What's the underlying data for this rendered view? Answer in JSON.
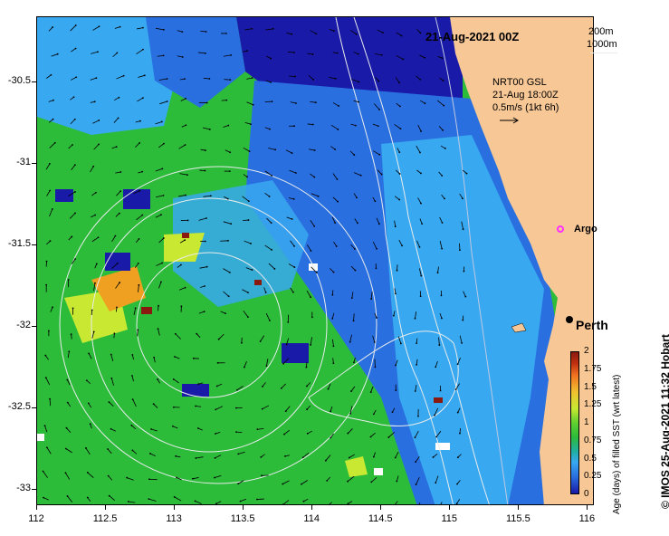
{
  "title": "21-Aug-2021 00Z",
  "depth_legend": [
    "200m",
    "1000m"
  ],
  "current_info": {
    "line1": "NRT00 GSL",
    "line2": "21-Aug 18:00Z",
    "line3": "0.5m/s (1kt 6h)"
  },
  "places": {
    "argo": "Argo",
    "perth": "Perth"
  },
  "axes": {
    "x_ticks": [
      "112",
      "112.5",
      "113",
      "113.5",
      "114",
      "114.5",
      "115",
      "115.5",
      "116"
    ],
    "x_values": [
      112,
      112.5,
      113,
      113.5,
      114,
      114.5,
      115,
      115.5,
      116
    ],
    "y_ticks": [
      "-30.5",
      "-31",
      "-31.5",
      "-32",
      "-32.5",
      "-33"
    ],
    "y_values": [
      -30.5,
      -31,
      -31.5,
      -32,
      -32.5,
      -33
    ],
    "lon_range": [
      112,
      116.05
    ],
    "lat_range": [
      -30.1,
      -33.1
    ]
  },
  "colorbar": {
    "title": "Age (days) of filled SST (wrt latest)",
    "ticks": [
      "2",
      "1.75",
      "1.5",
      "1.25",
      "1",
      "0.75",
      "0.5",
      "0.25",
      "0"
    ],
    "range": [
      0,
      2
    ]
  },
  "credit": "© IMOS 25-Aug-2021 11:32 Hobart",
  "colors": {
    "land": "#f7c796",
    "deep_blue": "#1a1aa8",
    "blue": "#2a6fe0",
    "light_blue": "#38a8f0",
    "green": "#2dbb3a",
    "yellow_green": "#c8e832",
    "orange": "#f0a020",
    "dark_red": "#8a1a10",
    "contour": "#e8ecec",
    "argo": "#ff33ff"
  }
}
